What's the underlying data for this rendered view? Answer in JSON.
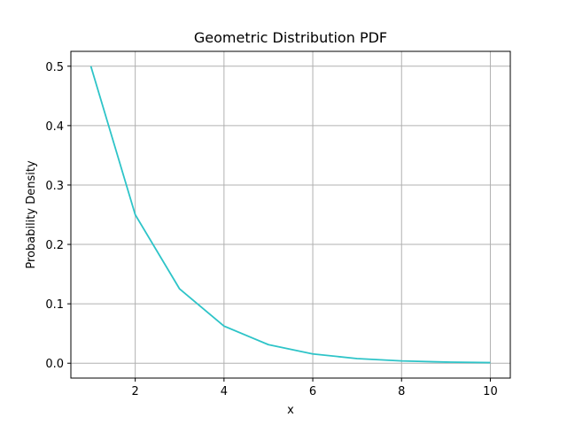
{
  "chart_data": {
    "type": "line",
    "title": "Geometric Distribution PDF",
    "xlabel": "x",
    "ylabel": "Probability Density",
    "xlim": [
      0.55,
      10.45
    ],
    "ylim": [
      -0.025,
      0.525
    ],
    "xticks": [
      2,
      4,
      6,
      8,
      10
    ],
    "yticks": [
      0.0,
      0.1,
      0.2,
      0.3,
      0.4,
      0.5
    ],
    "xtick_labels": [
      "2",
      "4",
      "6",
      "8",
      "10"
    ],
    "ytick_labels": [
      "0.0",
      "0.1",
      "0.2",
      "0.3",
      "0.4",
      "0.5"
    ],
    "grid": true,
    "series": [
      {
        "color": "#2ec4c8",
        "x": [
          1,
          2,
          3,
          4,
          5,
          6,
          7,
          8,
          9,
          10
        ],
        "y": [
          0.5,
          0.25,
          0.125,
          0.0625,
          0.03125,
          0.015625,
          0.0078125,
          0.00390625,
          0.001953125,
          0.0009765625
        ]
      }
    ]
  }
}
